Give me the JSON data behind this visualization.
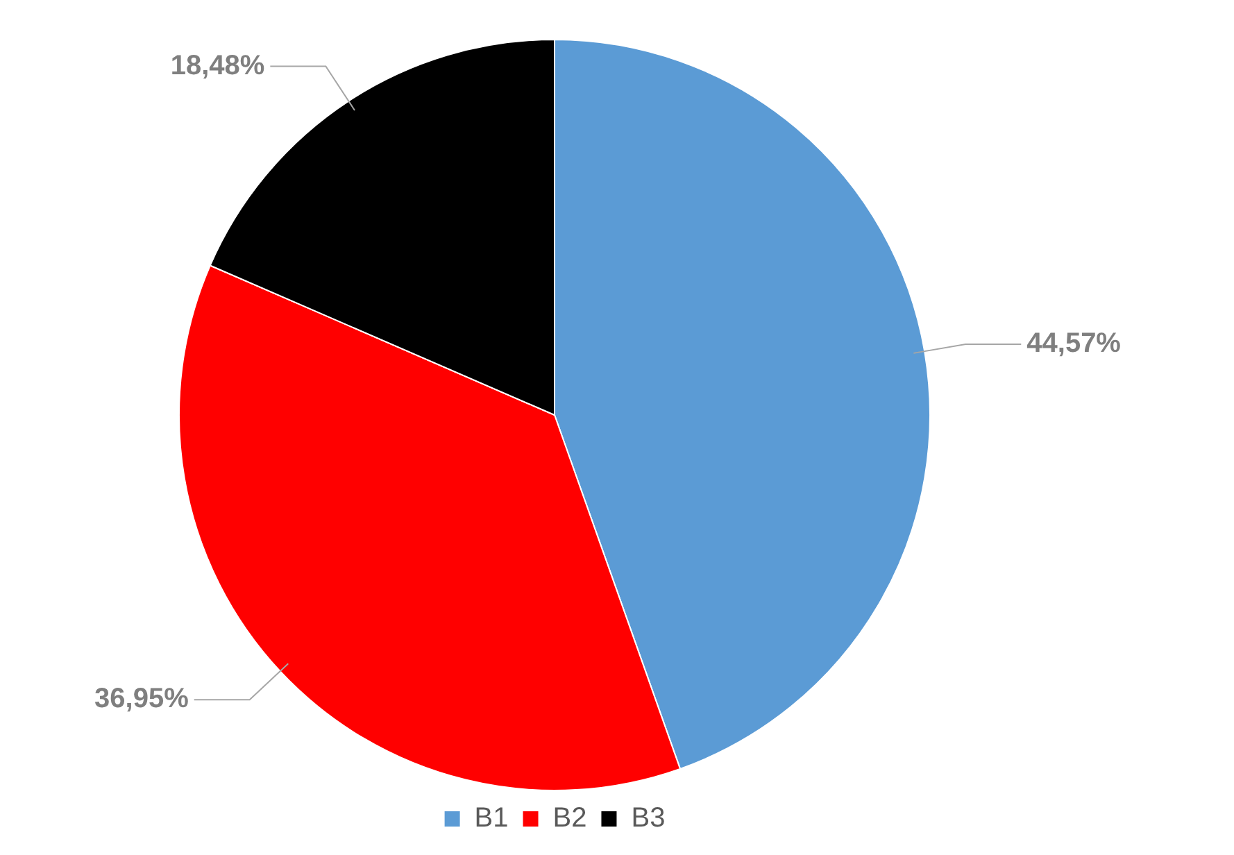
{
  "chart_data": {
    "type": "pie",
    "categories": [
      "B1",
      "B2",
      "B3"
    ],
    "values": [
      44.57,
      36.95,
      18.48
    ],
    "colors": [
      "#5b9bd5",
      "#ff0000",
      "#000000"
    ],
    "value_labels": [
      "44,57%",
      "36,95%",
      "18,48%"
    ],
    "legend": "bottom"
  }
}
